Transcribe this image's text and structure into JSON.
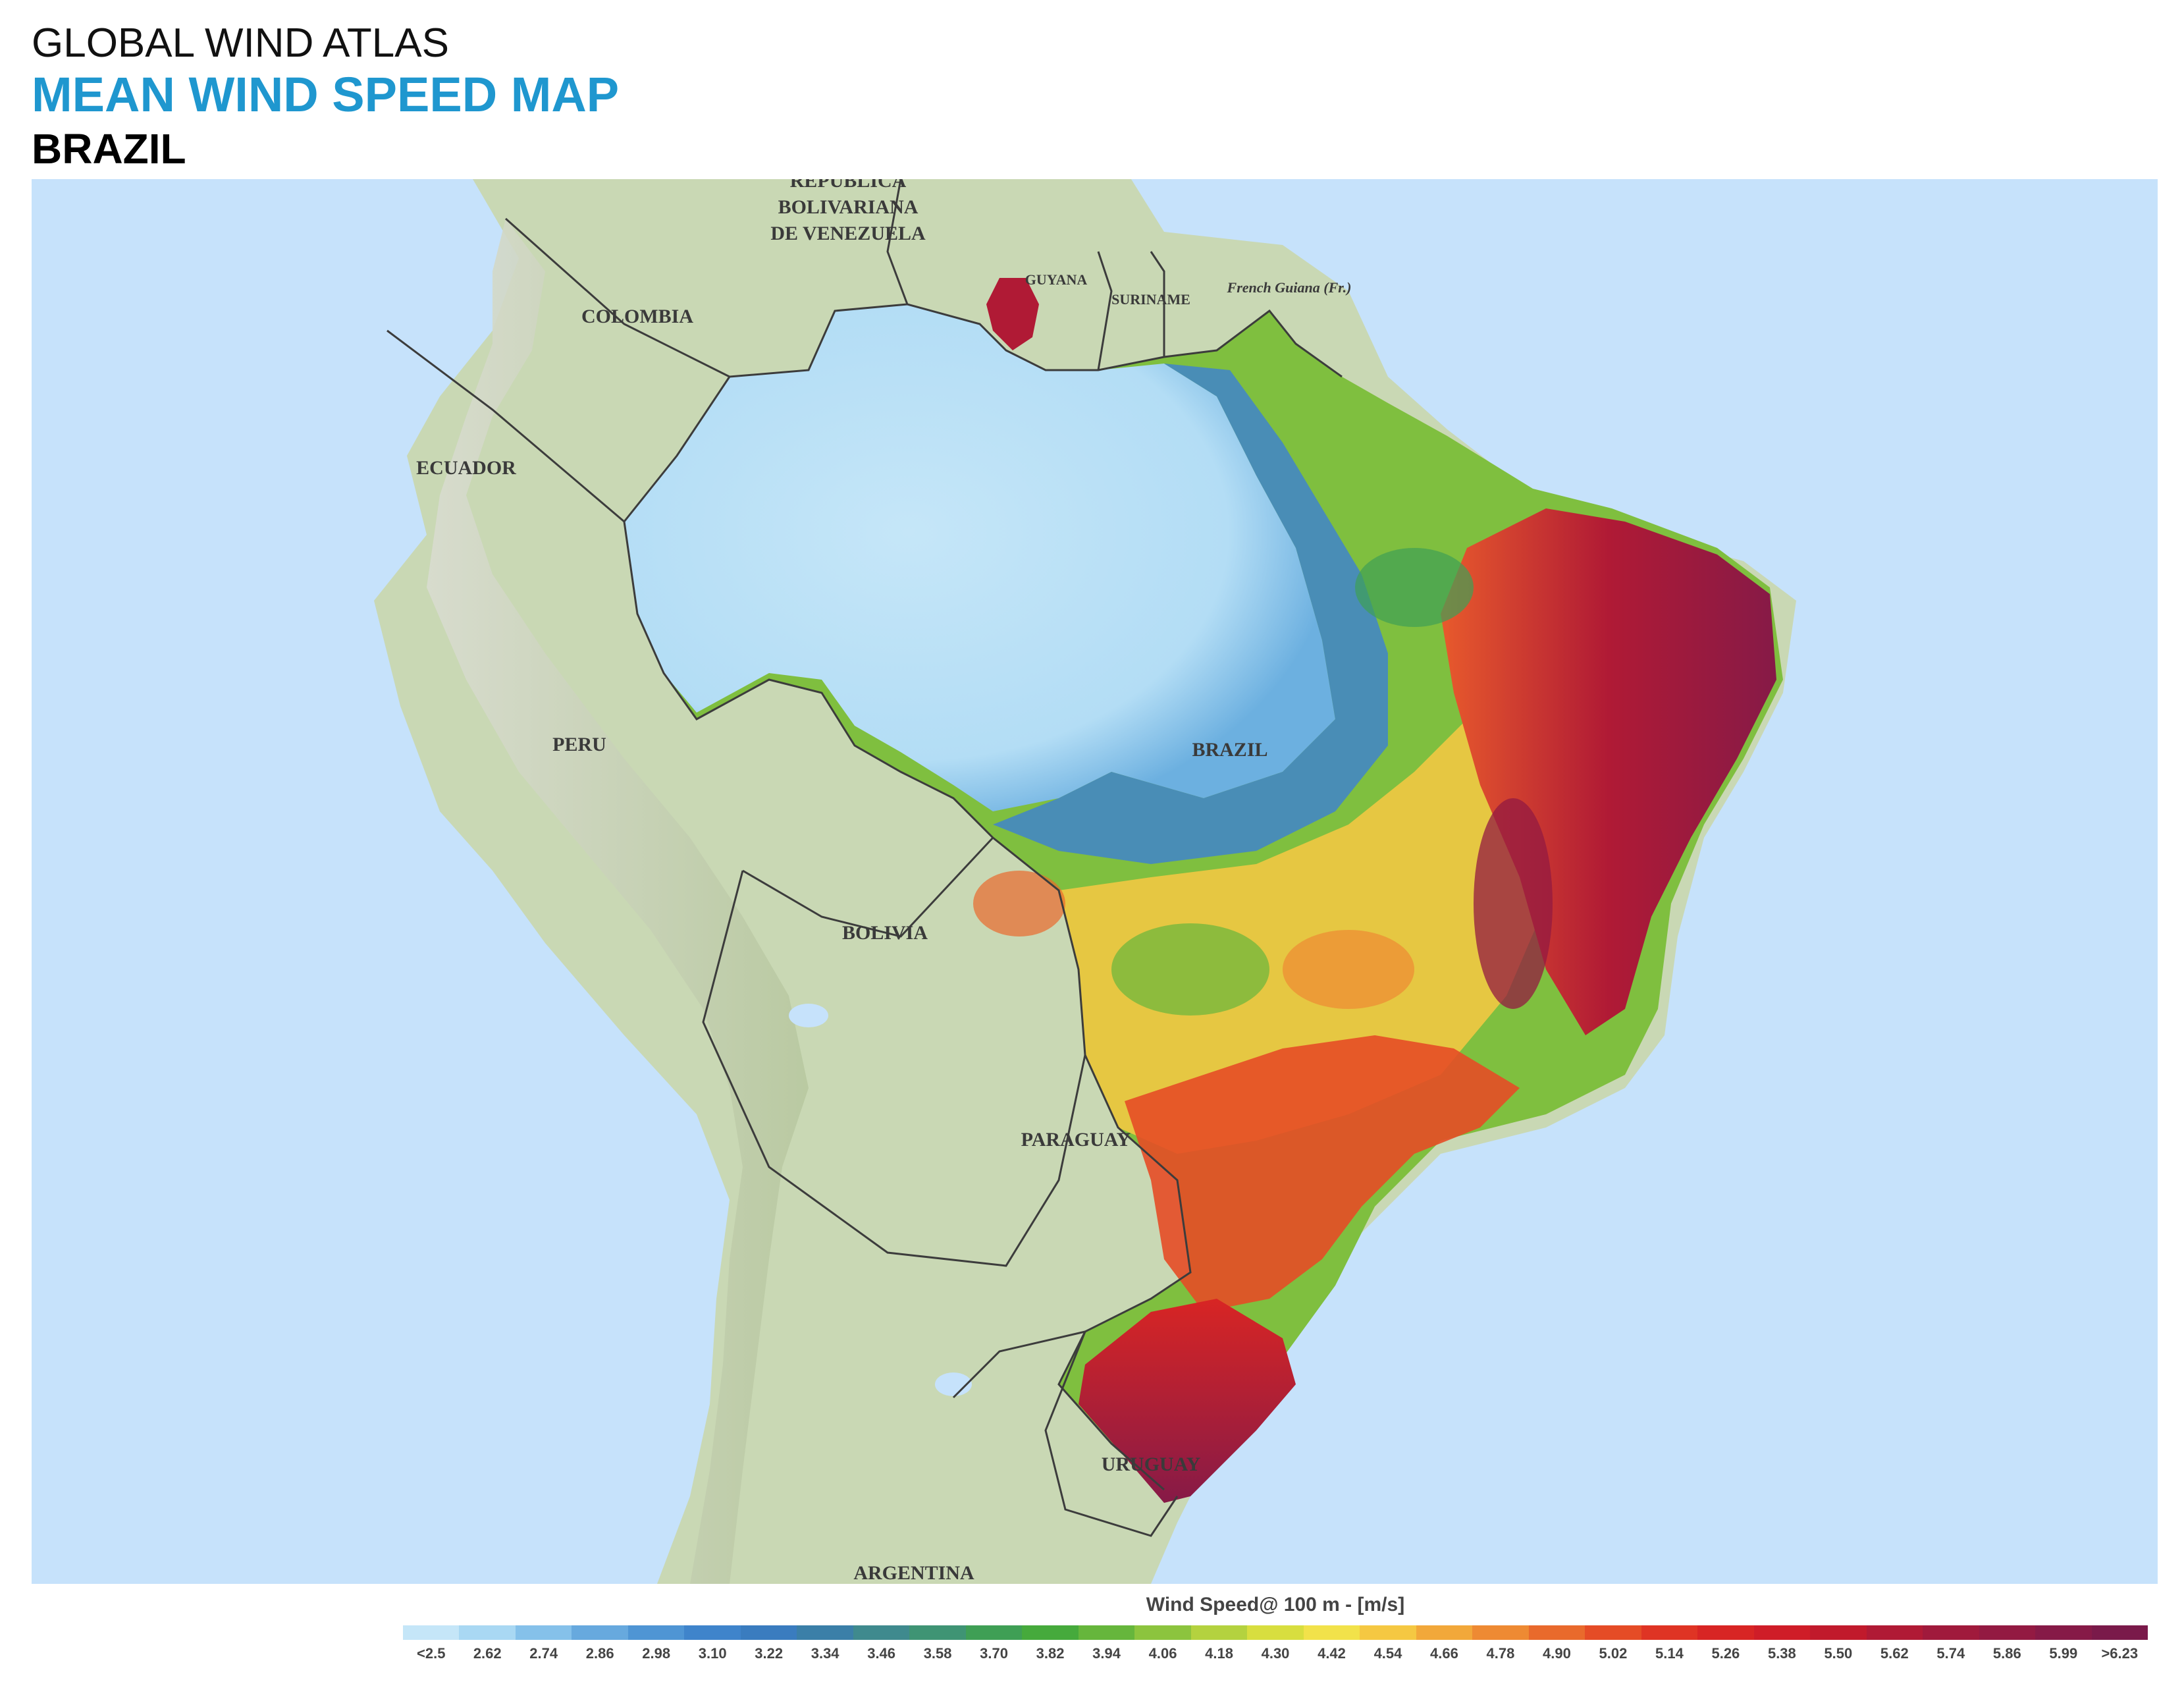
{
  "header": {
    "line1": "GLOBAL WIND ATLAS",
    "line2": "MEAN WIND SPEED MAP",
    "line3": "BRAZIL"
  },
  "map": {
    "ocean_color": "#c6e2fb",
    "land_color": "#c9d8b4",
    "border_color": "#3c3c3c",
    "labels": {
      "venezuela": [
        "REPÚBLICA",
        "BOLIVARIANA",
        "DE VENEZUELA"
      ],
      "colombia": "COLOMBIA",
      "ecuador": "ECUADOR",
      "peru": "PERU",
      "bolivia": "BOLIVIA",
      "paraguay": "PARAGUAY",
      "uruguay": "URUGUAY",
      "argentina": "ARGENTINA",
      "brazil": "BRAZIL",
      "guyana": "GUYANA",
      "suriname": "SURINAME",
      "french_guiana": "French Guiana (Fr.)"
    }
  },
  "legend": {
    "title": "Wind Speed@ 100 m - [m/s]",
    "labels": [
      "<2.5",
      "2.62",
      "2.74",
      "2.86",
      "2.98",
      "3.10",
      "3.22",
      "3.34",
      "3.46",
      "3.58",
      "3.70",
      "3.82",
      "3.94",
      "4.06",
      "4.18",
      "4.30",
      "4.42",
      "4.54",
      "4.66",
      "4.78",
      "4.90",
      "5.02",
      "5.14",
      "5.26",
      "5.38",
      "5.50",
      "5.62",
      "5.74",
      "5.86",
      "5.99",
      ">6.23"
    ],
    "colors": [
      "#c5e6f8",
      "#a9d8f3",
      "#85c1ea",
      "#67a9de",
      "#4f95d4",
      "#3f84cb",
      "#3a7cbf",
      "#3b7fa8",
      "#3f8a8e",
      "#3f9474",
      "#3f9f55",
      "#46aa3c",
      "#66b63c",
      "#8cc43e",
      "#b4d23f",
      "#d8de3f",
      "#f2e24a",
      "#f5c842",
      "#f2a83a",
      "#ee8a33",
      "#e96a2c",
      "#e54c26",
      "#df3424",
      "#d82524",
      "#cf1d28",
      "#c11a2c",
      "#b01a35",
      "#a01a3c",
      "#931a42",
      "#861a47",
      "#7a1a4a"
    ]
  }
}
